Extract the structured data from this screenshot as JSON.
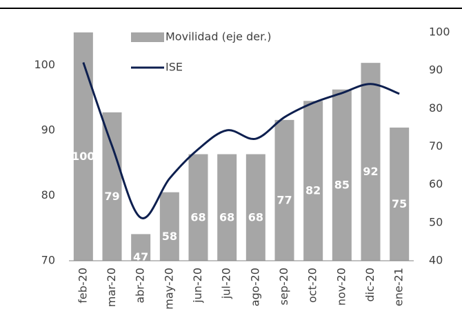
{
  "chart_data": {
    "type": "bar_line",
    "categories": [
      "feb-20",
      "mar-20",
      "abr-20",
      "may-20",
      "jun-20",
      "jul-20",
      "ago-20",
      "sep-20",
      "oct-20",
      "nov-20",
      "dic-20",
      "ene-21"
    ],
    "series": [
      {
        "name": "Movilidad (eje der.)",
        "type": "bar",
        "axis": "y2",
        "color": "#a6a6a6",
        "values": [
          100,
          79,
          47,
          58,
          68,
          68,
          68,
          77,
          82,
          85,
          92,
          75
        ]
      },
      {
        "name": "ISE",
        "type": "line",
        "axis": "y",
        "color": "#0d1f4f",
        "values": [
          100.4,
          87.6,
          76.6,
          82.6,
          87.1,
          90.0,
          88.7,
          92.0,
          94.2,
          95.7,
          97.1,
          95.6
        ]
      }
    ],
    "ylim": [
      70,
      105
    ],
    "yticks": [
      70,
      80,
      90,
      100
    ],
    "y2lim": [
      40,
      100
    ],
    "y2ticks": [
      40,
      50,
      60,
      70,
      80,
      90,
      100
    ]
  }
}
